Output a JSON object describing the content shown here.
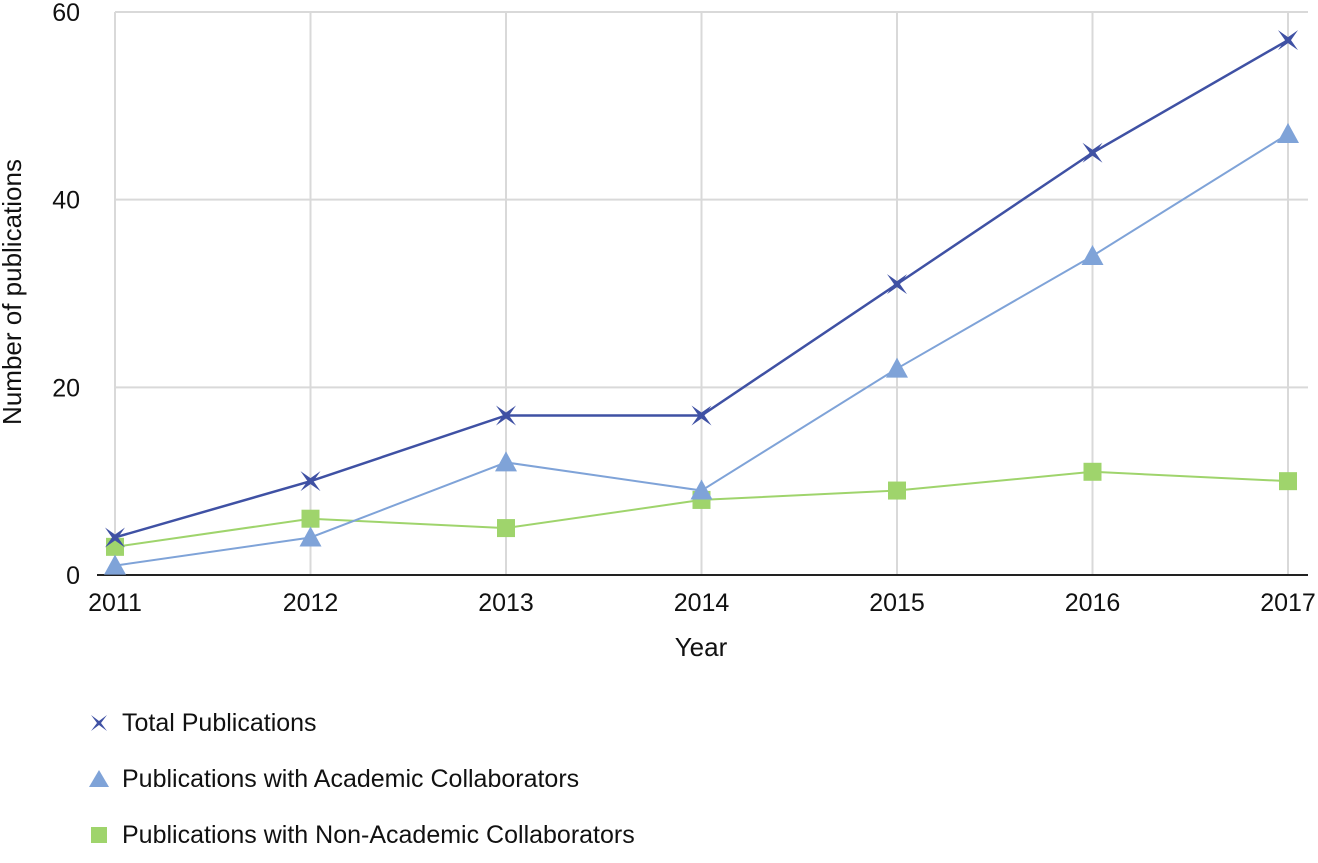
{
  "chart_data": {
    "type": "line",
    "xlabel": "Year",
    "ylabel": "Number of publications",
    "categories": [
      "2011",
      "2012",
      "2013",
      "2014",
      "2015",
      "2016",
      "2017"
    ],
    "ylim": [
      0,
      60
    ],
    "yticks": [
      "0",
      "20",
      "40",
      "60"
    ],
    "grid": true,
    "legend_position": "bottom-left",
    "series": [
      {
        "name": "Total Publications",
        "marker": "x",
        "color": "#3f51a4",
        "values": [
          4,
          10,
          17,
          17,
          31,
          45,
          57
        ]
      },
      {
        "name": "Publications with Academic Collaborators",
        "marker": "triangle",
        "color": "#7fa3d8",
        "values": [
          1,
          4,
          12,
          9,
          22,
          34,
          47
        ]
      },
      {
        "name": "Publications with Non-Academic Collaborators",
        "marker": "square",
        "color": "#9fd46c",
        "values": [
          3,
          6,
          5,
          8,
          9,
          11,
          10
        ]
      }
    ]
  }
}
